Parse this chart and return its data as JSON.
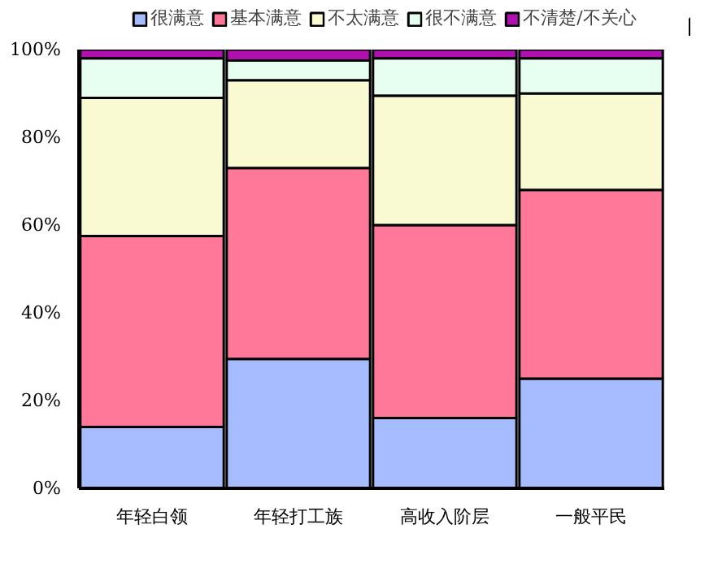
{
  "chart_data": {
    "type": "bar",
    "stacked": true,
    "categories": [
      "年轻白领",
      "年轻打工族",
      "高收入阶层",
      "一般平民"
    ],
    "series": [
      {
        "name": "很满意",
        "color": "#a6bcff",
        "values": [
          14,
          29.5,
          16,
          25
        ]
      },
      {
        "name": "基本满意",
        "color": "#ff7799",
        "values": [
          43.5,
          43.5,
          44,
          43
        ]
      },
      {
        "name": "不太满意",
        "color": "#fafad2",
        "values": [
          31.5,
          20,
          29.5,
          22
        ]
      },
      {
        "name": "很不满意",
        "color": "#e6fff0",
        "values": [
          9,
          4.5,
          8.5,
          8
        ]
      },
      {
        "name": "不清楚/不关心",
        "color": "#b010b0",
        "values": [
          2,
          2.5,
          2,
          2
        ]
      }
    ],
    "ylim": [
      0,
      100
    ],
    "yticks": [
      {
        "value": 0,
        "label": "0%"
      },
      {
        "value": 20,
        "label": "20%"
      },
      {
        "value": 40,
        "label": "40%"
      },
      {
        "value": 60,
        "label": "60%"
      },
      {
        "value": 80,
        "label": "80%"
      },
      {
        "value": 100,
        "label": "100%"
      }
    ],
    "grid": false,
    "legend": "top"
  }
}
